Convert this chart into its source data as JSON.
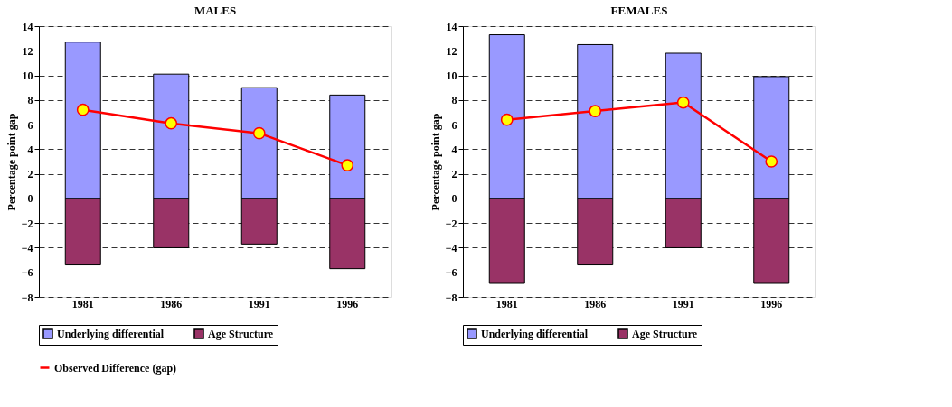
{
  "chart_data": [
    {
      "type": "bar",
      "title": "MALES",
      "ylabel": "Percentage point gap",
      "stacked": true,
      "categories": [
        "1981",
        "1986",
        "1991",
        "1996"
      ],
      "series": [
        {
          "name": "Underlying differential",
          "color": "#9999ff",
          "values": [
            12.7,
            10.1,
            9.0,
            8.4
          ]
        },
        {
          "name": "Age Structure",
          "color": "#993366",
          "values": [
            -5.4,
            -4.0,
            -3.7,
            -5.7
          ]
        },
        {
          "name": "Observed Difference (gap)",
          "type": "line",
          "marker": "circle",
          "color": "#ff0000",
          "values": [
            7.2,
            6.1,
            5.3,
            2.7
          ]
        }
      ],
      "ylim": [
        -8,
        14
      ],
      "yticks": [
        -8,
        -6,
        -4,
        -2,
        0,
        2,
        4,
        6,
        8,
        10,
        12,
        14
      ],
      "grid": "y",
      "legend": "bottom"
    },
    {
      "type": "bar",
      "title": "FEMALES",
      "ylabel": "Percentage point gap",
      "stacked": true,
      "categories": [
        "1981",
        "1986",
        "1991",
        "1996"
      ],
      "series": [
        {
          "name": "Underlying differential",
          "color": "#9999ff",
          "values": [
            13.3,
            12.5,
            11.8,
            9.9
          ]
        },
        {
          "name": "Age Structure",
          "color": "#993366",
          "values": [
            -6.9,
            -5.4,
            -4.0,
            -6.9
          ]
        },
        {
          "name": "Observed Difference (gap)",
          "type": "line",
          "marker": "circle",
          "color": "#ff0000",
          "values": [
            6.4,
            7.1,
            7.8,
            3.0
          ]
        }
      ],
      "ylim": [
        -8,
        14
      ],
      "yticks": [
        -8,
        -6,
        -4,
        -2,
        0,
        2,
        4,
        6,
        8,
        10,
        12,
        14
      ],
      "grid": "y",
      "legend": "bottom"
    }
  ]
}
